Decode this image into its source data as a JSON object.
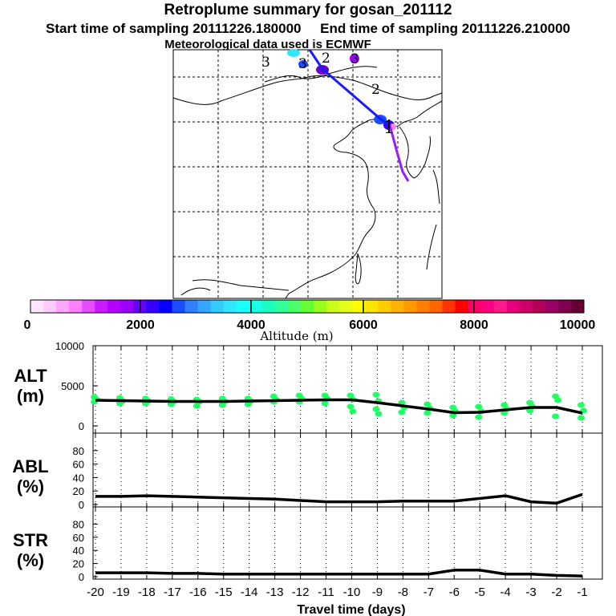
{
  "header": {
    "title": "Retroplume summary for gosan_201112",
    "start_label": "Start time of sampling",
    "start_value": "20111226.180000",
    "end_label": "End time of sampling",
    "end_value": "20111226.210000",
    "met": "Meteorological data used is ECMWF"
  },
  "map": {
    "day_markers": [
      "3",
      "3",
      "2",
      "3",
      "2",
      "1"
    ],
    "track_colors": [
      "#1a1aff",
      "#9a1aff"
    ]
  },
  "colorbar": {
    "ticks": [
      "0",
      "2000",
      "4000",
      "6000",
      "8000",
      "10000"
    ],
    "label": "Altitude (m)",
    "colors": [
      "#ffe5ff",
      "#ffccff",
      "#ffa6ff",
      "#ff80ff",
      "#e64dff",
      "#cc1aff",
      "#b300ff",
      "#9900ff",
      "#6600ff",
      "#3300ff",
      "#0000ff",
      "#1a4dff",
      "#3380ff",
      "#33a6ff",
      "#33ccff",
      "#33e6ff",
      "#1affff",
      "#1affe6",
      "#1affbf",
      "#33ff99",
      "#4dff66",
      "#66ff33",
      "#99ff1a",
      "#ccff1a",
      "#e6ff1a",
      "#ffff00",
      "#ffe600",
      "#ffcc00",
      "#ffb300",
      "#ff9900",
      "#ff8000",
      "#ff6600",
      "#ff3300",
      "#ff0000",
      "#ff0066",
      "#ff0080",
      "#ff1a8c",
      "#e6007a",
      "#cc0066",
      "#b30059",
      "#990066",
      "#80004d",
      "#660033"
    ]
  },
  "chart_data": [
    {
      "type": "line",
      "name": "ALT",
      "ylabel": "ALT",
      "yunit": "(m)",
      "ylim": [
        0,
        10000
      ],
      "yticks": [
        "10000",
        "5000",
        "0"
      ],
      "x": [
        -20,
        -19,
        -18,
        -17,
        -16,
        -15,
        -14,
        -13,
        -12,
        -11,
        -10,
        -9,
        -8,
        -7,
        -6,
        -5,
        -4,
        -3,
        -2,
        -1
      ],
      "values": [
        3200,
        3150,
        3100,
        3050,
        3050,
        3050,
        3100,
        3150,
        3200,
        3250,
        3250,
        2900,
        2500,
        2100,
        1650,
        1700,
        2000,
        2300,
        2300,
        1600
      ],
      "scatter_color": "#22ff66",
      "scatter": [
        [
          -20,
          [
            3600,
            3300,
            3000
          ]
        ],
        [
          -19,
          [
            3500,
            3100,
            2800
          ]
        ],
        [
          -18,
          [
            3400,
            3100,
            2800
          ]
        ],
        [
          -17,
          [
            3350,
            3050,
            2700
          ]
        ],
        [
          -16,
          [
            3300,
            3000,
            2500
          ]
        ],
        [
          -15,
          [
            3400,
            3050,
            2600
          ]
        ],
        [
          -14,
          [
            3400,
            3100,
            2700
          ]
        ],
        [
          -13,
          [
            3700,
            3300,
            3000
          ]
        ],
        [
          -12,
          [
            3800,
            3400,
            3000
          ]
        ],
        [
          -11,
          [
            3800,
            3400,
            2800
          ]
        ],
        [
          -10,
          [
            3800,
            3300,
            2400,
            1800
          ]
        ],
        [
          -9,
          [
            3900,
            3100,
            2100,
            1500
          ]
        ],
        [
          -8,
          [
            2900,
            2300,
            1700
          ]
        ],
        [
          -7,
          [
            2700,
            2200,
            1600
          ]
        ],
        [
          -6,
          [
            2300,
            1800,
            1300
          ]
        ],
        [
          -5,
          [
            2400,
            1800,
            1100
          ]
        ],
        [
          -4,
          [
            2600,
            2100,
            1600
          ]
        ],
        [
          -3,
          [
            2900,
            2400,
            1900
          ]
        ],
        [
          -2,
          [
            3700,
            3200,
            1200
          ]
        ],
        [
          -1,
          [
            2600,
            1900,
            1000
          ]
        ]
      ]
    },
    {
      "type": "line",
      "name": "ABL",
      "ylabel": "ABL",
      "yunit": "(%)",
      "ylim": [
        0,
        100
      ],
      "yticks": [
        "80",
        "60",
        "40",
        "20",
        "0"
      ],
      "x": [
        -20,
        -19,
        -18,
        -17,
        -16,
        -15,
        -14,
        -13,
        -12,
        -11,
        -10,
        -9,
        -8,
        -7,
        -6,
        -5,
        -4,
        -3,
        -2,
        -1
      ],
      "values": [
        12,
        12,
        13,
        12,
        11,
        10,
        9,
        8,
        6,
        4,
        4,
        4,
        5,
        5,
        5,
        9,
        13,
        4,
        2,
        15
      ]
    },
    {
      "type": "line",
      "name": "STR",
      "ylabel": "STR",
      "yunit": "(%)",
      "ylim": [
        0,
        100
      ],
      "yticks": [
        "80",
        "60",
        "40",
        "20",
        "0"
      ],
      "x": [
        -20,
        -19,
        -18,
        -17,
        -16,
        -15,
        -14,
        -13,
        -12,
        -11,
        -10,
        -9,
        -8,
        -7,
        -6,
        -5,
        -4,
        -3,
        -2,
        -1
      ],
      "values": [
        6,
        6,
        6,
        5,
        5,
        4,
        4,
        4,
        4,
        4,
        4,
        4,
        4,
        4,
        10,
        10,
        4,
        4,
        2,
        1
      ],
      "xlabel": "Travel time (days)",
      "xticks": [
        "-20",
        "-19",
        "-18",
        "-17",
        "-16",
        "-15",
        "-14",
        "-13",
        "-12",
        "-11",
        "-10",
        "-9",
        "-8",
        "-7",
        "-6",
        "-5",
        "-4",
        "-3",
        "-2",
        "-1"
      ]
    }
  ]
}
